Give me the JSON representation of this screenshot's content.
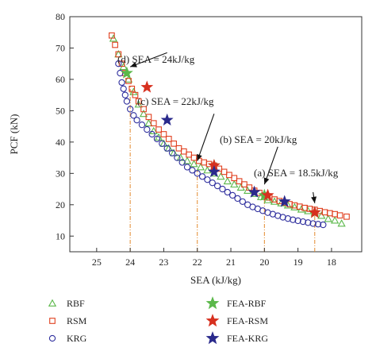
{
  "chart_data": {
    "type": "scatter",
    "xlabel": "SEA (kJ/kg)",
    "ylabel": "PCF (kN)",
    "xlim": [
      25.8,
      17.1
    ],
    "ylim": [
      5,
      80
    ],
    "x_reversed": true,
    "xticks": [
      25,
      24,
      23,
      22,
      21,
      20,
      19,
      18
    ],
    "yticks": [
      10,
      20,
      30,
      40,
      50,
      60,
      70,
      80
    ],
    "grid": false,
    "legend_position": "bottom",
    "series": [
      {
        "name": "RBF",
        "marker": "triangle-open",
        "color": "#5bb84a",
        "x": [
          24.5,
          24.35,
          24.2,
          24.05,
          23.9,
          23.75,
          23.6,
          23.45,
          23.3,
          23.15,
          23.0,
          22.85,
          22.7,
          22.5,
          22.3,
          22.1,
          21.9,
          21.7,
          21.5,
          21.3,
          21.1,
          20.9,
          20.7,
          20.5,
          20.3,
          20.1,
          19.9,
          19.7,
          19.5,
          19.3,
          19.1,
          18.9,
          18.7,
          18.5,
          18.3,
          18.1,
          17.9,
          17.7
        ],
        "y": [
          73,
          68,
          64,
          60,
          56,
          52,
          49,
          46,
          43.5,
          41.5,
          39.5,
          38,
          36.5,
          35,
          34,
          33,
          32,
          31,
          30,
          29,
          27.5,
          26.5,
          25.5,
          24.5,
          23.5,
          22.5,
          21.5,
          21,
          20.5,
          19.8,
          19.2,
          18.5,
          18,
          17.5,
          16.5,
          15.5,
          15,
          14
        ]
      },
      {
        "name": "RSM",
        "marker": "square-open",
        "color": "#e0401f",
        "x": [
          24.55,
          24.45,
          24.35,
          24.25,
          24.15,
          24.05,
          23.95,
          23.85,
          23.75,
          23.6,
          23.45,
          23.3,
          23.15,
          23.0,
          22.85,
          22.7,
          22.55,
          22.4,
          22.25,
          22.1,
          21.95,
          21.8,
          21.65,
          21.5,
          21.35,
          21.2,
          21.05,
          20.9,
          20.75,
          20.6,
          20.45,
          20.3,
          20.15,
          20.0,
          19.85,
          19.7,
          19.55,
          19.4,
          19.25,
          19.1,
          18.95,
          18.8,
          18.65,
          18.5,
          18.35,
          18.2,
          18.05,
          17.9,
          17.75,
          17.55
        ],
        "y": [
          74,
          71,
          68,
          65,
          62,
          59.5,
          57,
          55,
          53,
          50.5,
          48,
          46,
          44,
          42.5,
          41,
          39.5,
          38,
          37,
          36,
          35,
          34,
          33.5,
          33,
          32.5,
          31.5,
          30.5,
          29.5,
          28.5,
          27.5,
          26.5,
          25.5,
          24.5,
          23.8,
          23,
          22.3,
          21.7,
          21.2,
          20.7,
          20.2,
          19.8,
          19.4,
          19,
          18.7,
          18.4,
          18,
          17.6,
          17.3,
          17,
          16.6,
          16.2
        ]
      },
      {
        "name": "KRG",
        "marker": "circle-open",
        "color": "#2f2f9e",
        "x": [
          24.35,
          24.3,
          24.25,
          24.2,
          24.15,
          24.1,
          24.0,
          23.9,
          23.8,
          23.65,
          23.5,
          23.35,
          23.2,
          23.05,
          22.9,
          22.75,
          22.6,
          22.45,
          22.3,
          22.15,
          22.0,
          21.85,
          21.7,
          21.55,
          21.4,
          21.25,
          21.1,
          20.95,
          20.8,
          20.65,
          20.5,
          20.35,
          20.2,
          20.05,
          19.9,
          19.75,
          19.6,
          19.45,
          19.3,
          19.15,
          19.0,
          18.85,
          18.7,
          18.55,
          18.4,
          18.25
        ],
        "y": [
          65,
          62,
          59,
          57,
          55,
          53,
          50.5,
          48.5,
          47,
          45.5,
          44,
          42.5,
          41,
          39.5,
          38,
          36.5,
          35,
          33.5,
          32,
          31,
          30,
          29,
          28,
          27,
          26,
          25,
          24,
          23,
          22,
          21,
          20,
          19.3,
          18.7,
          18.1,
          17.5,
          17,
          16.5,
          16,
          15.6,
          15.2,
          14.9,
          14.6,
          14.3,
          14,
          13.8,
          13.6
        ]
      },
      {
        "name": "FEA-RBF",
        "marker": "star",
        "color": "#5bb84a",
        "x": [
          24.1,
          21.5,
          20.0,
          18.5
        ],
        "y": [
          62,
          32.5,
          23,
          17.5
        ]
      },
      {
        "name": "FEA-RSM",
        "marker": "star",
        "color": "#d7301f",
        "x": [
          23.5,
          21.5,
          19.9,
          18.5
        ],
        "y": [
          57.5,
          32.5,
          23,
          17.5
        ]
      },
      {
        "name": "FEA-KRG",
        "marker": "star",
        "color": "#2a2a8c",
        "x": [
          22.9,
          21.5,
          20.3,
          19.4
        ],
        "y": [
          47,
          30.5,
          24,
          21
        ]
      }
    ],
    "vlines": [
      {
        "x": 24,
        "y_top": 58
      },
      {
        "x": 22,
        "y_top": 31
      },
      {
        "x": 20,
        "y_top": 22
      },
      {
        "x": 18.5,
        "y_top": 16.5
      }
    ],
    "annotations": [
      {
        "text": "(d) SEA = 24kJ/kg",
        "arrow_from": [
          22.9,
          68.5
        ],
        "arrow_to": [
          24.0,
          64.0
        ]
      },
      {
        "text": "(c) SEA = 22kJ/kg",
        "arrow_from": [
          21.5,
          49
        ],
        "arrow_to": [
          22.0,
          34.0
        ]
      },
      {
        "text": "(b) SEA = 20kJ/kg",
        "arrow_from": [
          19.6,
          38.5
        ],
        "arrow_to": [
          20.0,
          26.5
        ]
      },
      {
        "text": "(a) SEA = 18.5kJ/kg",
        "arrow_from": [
          18.55,
          24.0
        ],
        "arrow_to": [
          18.5,
          20.5
        ]
      }
    ]
  }
}
